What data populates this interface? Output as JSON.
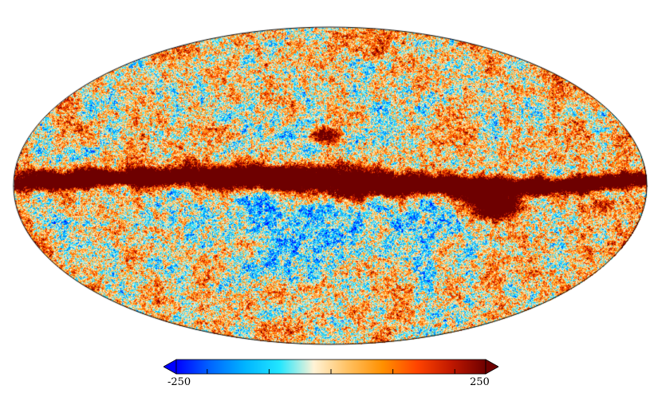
{
  "map": {
    "projection": "mollweide",
    "colormap": [
      "#0000ff",
      "#0066ff",
      "#00b4ff",
      "#22e6ff",
      "#fff3d6",
      "#ffc060",
      "#ff9000",
      "#ff4400",
      "#c01800",
      "#6e0000"
    ]
  },
  "colorbar": {
    "min_label": "-250",
    "max_label": "250",
    "min_value": -250,
    "max_value": 250,
    "extend": "both",
    "tick_values": [
      -200,
      -100,
      0,
      100,
      200
    ]
  }
}
